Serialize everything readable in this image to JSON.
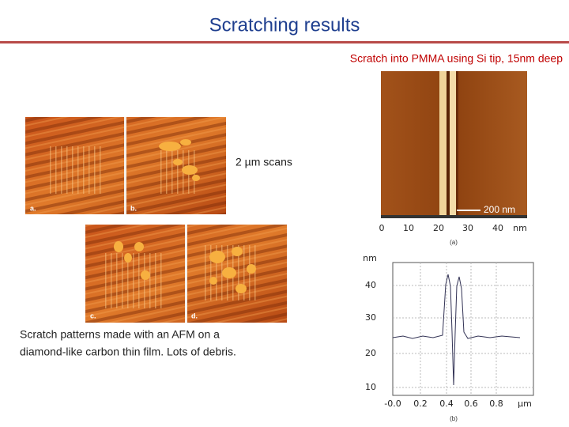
{
  "header": {
    "title": "Scratching results"
  },
  "subtitle": "Scratch into PMMA using Si tip, 15nm deep",
  "left_images": {
    "panels": [
      "a.",
      "b.",
      "c.",
      "d."
    ],
    "label": "2 µm scans",
    "caption": [
      "Scratch patterns made with an AFM on a",
      "diamond-like carbon thin film. Lots of debris."
    ]
  },
  "afm_image": {
    "scale_bar": "200 nm",
    "axis_ticks": [
      "0",
      "10",
      "20",
      "30",
      "40"
    ],
    "axis_unit": "nm",
    "panel_label": "(a)"
  },
  "profile": {
    "y_unit": "nm",
    "y_ticks": [
      "40",
      "30",
      "20",
      "10"
    ],
    "x_ticks": [
      "-0.0",
      "0.2",
      "0.4",
      "0.6",
      "0.8"
    ],
    "x_unit": "µm",
    "panel_label": "(b)"
  }
}
